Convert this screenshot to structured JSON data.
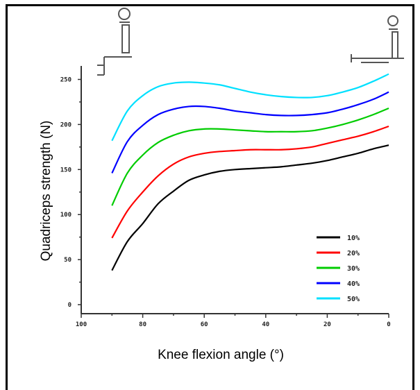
{
  "chart_data": {
    "type": "line",
    "xlabel": "Knee flexion angle (°)",
    "ylabel": "Quadriceps strength (N)",
    "xlim": [
      100,
      0
    ],
    "ylim": [
      -10,
      265
    ],
    "x_ticks": [
      100,
      80,
      60,
      40,
      20,
      0
    ],
    "x_tick_labels": [
      "100",
      "80",
      "60",
      "40",
      "20",
      "0"
    ],
    "y_ticks": [
      0,
      50,
      100,
      150,
      200,
      250
    ],
    "y_tick_labels": [
      "0",
      "50",
      "100",
      "150",
      "200",
      "250"
    ],
    "legend_position": "lower-right",
    "x": [
      90,
      85,
      80,
      75,
      70,
      65,
      60,
      55,
      50,
      45,
      40,
      35,
      30,
      25,
      20,
      15,
      10,
      5,
      0
    ],
    "series": [
      {
        "name": "10%",
        "color": "#000000",
        "values": [
          38,
          70,
          90,
          112,
          126,
          138,
          144,
          148,
          150,
          151,
          152,
          153,
          155,
          157,
          160,
          164,
          168,
          173,
          177
        ]
      },
      {
        "name": "20%",
        "color": "#ff0000",
        "values": [
          74,
          104,
          125,
          143,
          156,
          164,
          168,
          170,
          171,
          172,
          172,
          172,
          173,
          175,
          179,
          183,
          187,
          192,
          198
        ]
      },
      {
        "name": "30%",
        "color": "#00cc00",
        "values": [
          110,
          146,
          166,
          180,
          188,
          193,
          195,
          195,
          194,
          193,
          192,
          192,
          192,
          193,
          196,
          200,
          205,
          211,
          218
        ]
      },
      {
        "name": "40%",
        "color": "#0000ff",
        "values": [
          146,
          181,
          199,
          211,
          217,
          220,
          220,
          218,
          215,
          213,
          211,
          210,
          210,
          211,
          213,
          217,
          222,
          228,
          236
        ]
      },
      {
        "name": "50%",
        "color": "#00e0ff",
        "values": [
          182,
          215,
          232,
          242,
          246,
          247,
          246,
          244,
          240,
          236,
          233,
          231,
          230,
          230,
          232,
          236,
          241,
          248,
          256
        ]
      }
    ]
  }
}
